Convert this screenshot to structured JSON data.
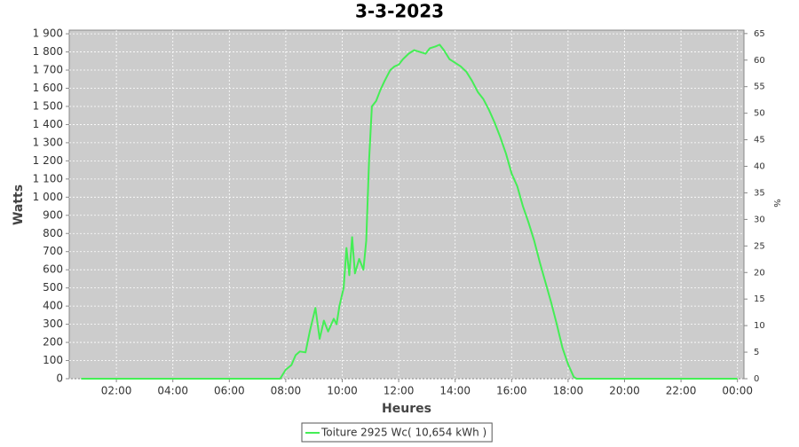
{
  "chart_data": {
    "type": "line",
    "title": "3-3-2023",
    "x_label": "Heures",
    "y_label": "Watts",
    "y2_label": "%",
    "grid": true,
    "legend": "bottom",
    "xlim": [
      0.33,
      24.23
    ],
    "xticks": [
      {
        "value": 2,
        "label": "02:00"
      },
      {
        "value": 4,
        "label": "04:00"
      },
      {
        "value": 6,
        "label": "06:00"
      },
      {
        "value": 8,
        "label": "08:00"
      },
      {
        "value": 10,
        "label": "10:00"
      },
      {
        "value": 12,
        "label": "12:00"
      },
      {
        "value": 14,
        "label": "14:00"
      },
      {
        "value": 16,
        "label": "16:00"
      },
      {
        "value": 18,
        "label": "18:00"
      },
      {
        "value": 20,
        "label": "20:00"
      },
      {
        "value": 22,
        "label": "22:00"
      },
      {
        "value": 24,
        "label": "00:00"
      }
    ],
    "ylim": [
      0,
      1920
    ],
    "yticks": [
      0,
      100,
      200,
      300,
      400,
      500,
      600,
      700,
      800,
      900,
      {
        "value": 1000,
        "label": "1 000"
      },
      {
        "value": 1100,
        "label": "1 100"
      },
      {
        "value": 1200,
        "label": "1 200"
      },
      {
        "value": 1300,
        "label": "1 300"
      },
      {
        "value": 1400,
        "label": "1 400"
      },
      {
        "value": 1500,
        "label": "1 500"
      },
      {
        "value": 1600,
        "label": "1 600"
      },
      {
        "value": 1700,
        "label": "1 700"
      },
      {
        "value": 1800,
        "label": "1 800"
      },
      {
        "value": 1900,
        "label": "1 900"
      }
    ],
    "y2lim": [
      0,
      65.64
    ],
    "y2ticks": [
      0,
      5,
      10,
      15,
      20,
      25,
      30,
      35,
      40,
      45,
      50,
      55,
      60,
      65
    ],
    "x": [
      0.75,
      7.8,
      8.0,
      8.2,
      8.35,
      8.5,
      8.7,
      8.85,
      9.05,
      9.2,
      9.35,
      9.5,
      9.7,
      9.8,
      9.9,
      10.05,
      10.15,
      10.25,
      10.35,
      10.45,
      10.6,
      10.75,
      10.85,
      10.95,
      11.05,
      11.2,
      11.35,
      11.5,
      11.7,
      11.85,
      12.0,
      12.15,
      12.35,
      12.55,
      12.75,
      12.95,
      13.1,
      13.3,
      13.45,
      13.6,
      13.8,
      14.0,
      14.2,
      14.4,
      14.6,
      14.8,
      15.0,
      15.2,
      15.4,
      15.6,
      15.8,
      16.0,
      16.2,
      16.4,
      16.6,
      16.8,
      17.0,
      17.2,
      17.4,
      17.6,
      17.8,
      18.0,
      18.2,
      18.3,
      24.0
    ],
    "series": [
      {
        "name": "Toiture 2925 Wc( 10,654 kWh )",
        "color": "#44ee55",
        "values": [
          0,
          0,
          50,
          75,
          130,
          150,
          145,
          260,
          390,
          220,
          320,
          260,
          330,
          300,
          400,
          500,
          720,
          570,
          780,
          580,
          660,
          600,
          760,
          1200,
          1500,
          1530,
          1590,
          1640,
          1700,
          1720,
          1730,
          1760,
          1790,
          1810,
          1800,
          1790,
          1820,
          1830,
          1840,
          1810,
          1760,
          1740,
          1720,
          1690,
          1640,
          1580,
          1540,
          1480,
          1410,
          1330,
          1240,
          1130,
          1060,
          950,
          860,
          760,
          640,
          530,
          420,
          300,
          170,
          80,
          10,
          0,
          0
        ]
      }
    ]
  }
}
